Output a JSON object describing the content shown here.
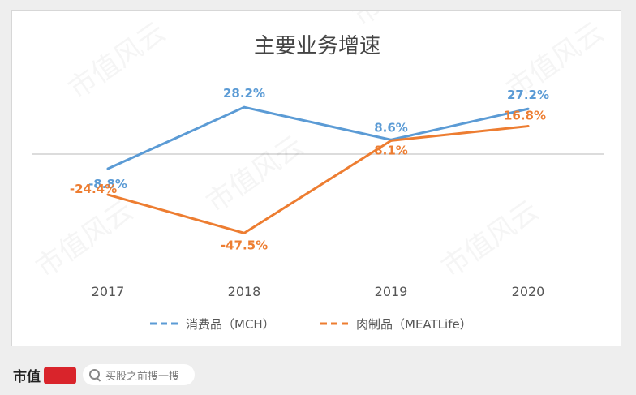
{
  "chart_data": {
    "type": "line",
    "title": "主要业务增速",
    "categories": [
      "2017",
      "2018",
      "2019",
      "2020"
    ],
    "series": [
      {
        "name": "消费品（MCH）",
        "values": [
          -8.8,
          28.2,
          8.6,
          27.2
        ],
        "labels": [
          "-8.8%",
          "28.2%",
          "8.6%",
          "27.2%"
        ],
        "color": "#5b9bd5"
      },
      {
        "name": "肉制品（MEATLife）",
        "values": [
          -24.4,
          -47.5,
          8.1,
          16.8
        ],
        "labels": [
          "-24.4%",
          "-47.5%",
          "8.1%",
          "16.8%"
        ],
        "color": "#ed7d31"
      }
    ],
    "legend_position": "bottom",
    "grid": false,
    "zero_line": true
  },
  "watermark": "市值风云",
  "footer": {
    "brand": "市值",
    "search_placeholder": "买股之前搜一搜"
  }
}
